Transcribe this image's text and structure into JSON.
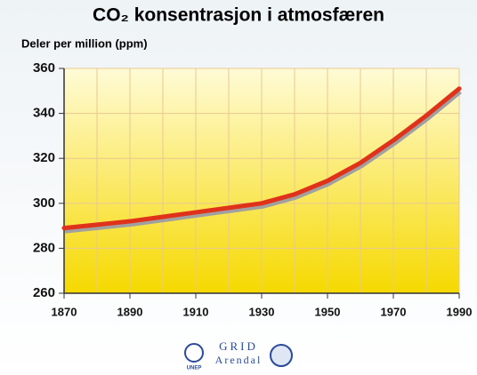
{
  "chart_data": {
    "type": "line",
    "title": "CO₂ konsentrasjon i atmosfæren",
    "ylabel": "Deler per million (ppm)",
    "x": [
      1870,
      1880,
      1890,
      1900,
      1910,
      1920,
      1930,
      1940,
      1950,
      1960,
      1970,
      1980,
      1990
    ],
    "series": [
      {
        "name": "CO₂",
        "color": "#e0321a",
        "values": [
          289,
          290.5,
          292,
          294,
          296,
          298,
          300,
          304,
          310,
          318,
          328,
          339,
          351
        ]
      }
    ],
    "xlim": [
      1870,
      1990
    ],
    "xticks": [
      1870,
      1890,
      1910,
      1930,
      1950,
      1970,
      1990
    ],
    "xgrid": [
      1880,
      1900,
      1920,
      1940,
      1960,
      1980
    ],
    "ylim": [
      260,
      360
    ],
    "yticks": [
      260,
      280,
      300,
      320,
      340,
      360
    ],
    "grid": true
  },
  "footer": {
    "unep": "UNEP",
    "grid": "GRID",
    "arendal": "Arendal"
  }
}
